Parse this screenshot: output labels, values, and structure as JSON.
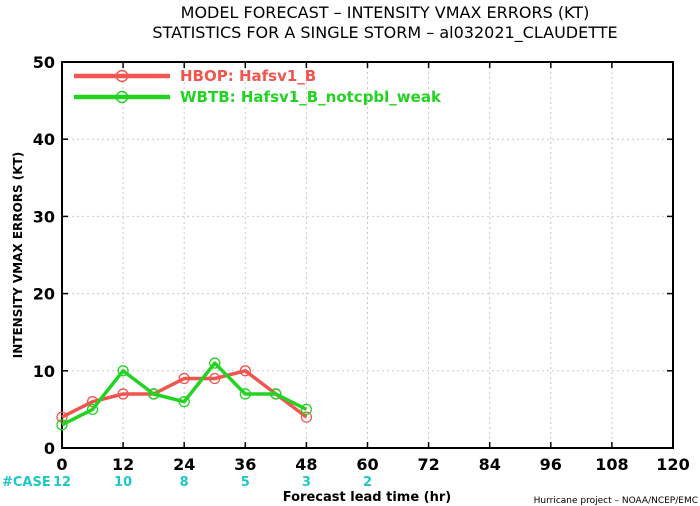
{
  "chart_data": {
    "type": "line",
    "title": "MODEL FORECAST – INTENSITY VMAX ERRORS (KT)",
    "subtitle": "STATISTICS FOR A SINGLE STORM – al032021_CLAUDETTE",
    "xlabel": "Forecast lead time (hr)",
    "ylabel": "INTENSITY VMAX ERRORS (KT)",
    "xlim": [
      0,
      120
    ],
    "ylim": [
      0,
      50
    ],
    "xticks": [
      0,
      12,
      24,
      36,
      48,
      60,
      72,
      84,
      96,
      108,
      120
    ],
    "yticks": [
      0,
      10,
      20,
      30,
      40,
      50
    ],
    "grid": true,
    "legend_position": "top-left",
    "series": [
      {
        "name": "HBOP: Hafsv1_B",
        "color": "#f0554f",
        "x": [
          0,
          6,
          12,
          18,
          24,
          30,
          36,
          42,
          48
        ],
        "y": [
          4,
          6,
          7,
          7,
          9,
          9,
          10,
          7,
          4
        ]
      },
      {
        "name": "WBTB: Hafsv1_B_notcpbl_weak",
        "color": "#22d322",
        "x": [
          0,
          6,
          12,
          18,
          24,
          30,
          36,
          42,
          48
        ],
        "y": [
          3,
          5,
          10,
          7,
          6,
          11,
          7,
          7,
          5
        ]
      }
    ],
    "case_label": "#CASE",
    "case_color": "#1fc7c7",
    "cases": [
      {
        "x": 0,
        "n": "12"
      },
      {
        "x": 12,
        "n": "10"
      },
      {
        "x": 24,
        "n": "8"
      },
      {
        "x": 36,
        "n": "5"
      },
      {
        "x": 48,
        "n": "3"
      },
      {
        "x": 60,
        "n": "2"
      }
    ]
  },
  "footer": {
    "credit": "Hurricane project – NOAA/NCEP/EMC"
  }
}
